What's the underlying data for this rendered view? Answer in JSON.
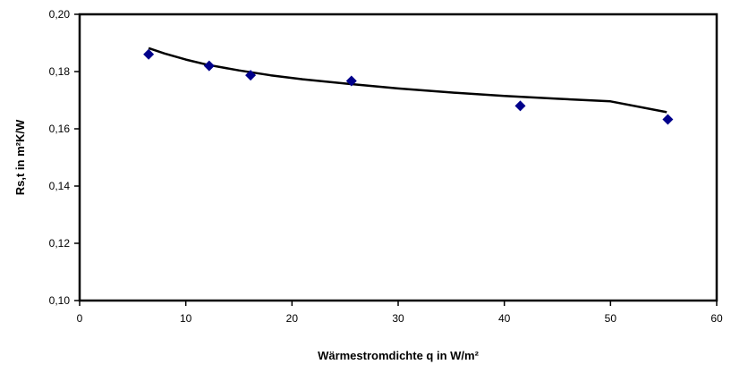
{
  "chart_data": {
    "type": "scatter",
    "xlabel": "Wärmestromdichte q in W/m²",
    "ylabel": "Rs,t in m²K/W",
    "xlim": [
      0,
      60
    ],
    "ylim": [
      0.1,
      0.2
    ],
    "x_ticks": [
      0,
      10,
      20,
      30,
      40,
      50,
      60
    ],
    "x_tick_labels": [
      "0",
      "10",
      "20",
      "30",
      "40",
      "50",
      "60"
    ],
    "y_ticks": [
      0.1,
      0.12,
      0.14,
      0.16,
      0.18,
      0.2
    ],
    "y_tick_labels": [
      "0,10",
      "0,12",
      "0,14",
      "0,16",
      "0,18",
      "0,20"
    ],
    "grid": false,
    "legend": "none",
    "series": [
      {
        "x": [
          6.5,
          12.2,
          16.1,
          25.6,
          41.5,
          55.4
        ],
        "y": [
          0.186,
          0.182,
          0.1787,
          0.1767,
          0.168,
          0.1633
        ]
      }
    ],
    "trendline": {
      "type": "power",
      "x": [
        6.5,
        8,
        10,
        12,
        15,
        18,
        21,
        25,
        30,
        35,
        40,
        45,
        50,
        55.3
      ],
      "y": [
        0.1882,
        0.1863,
        0.1842,
        0.1824,
        0.1804,
        0.1787,
        0.1773,
        0.1758,
        0.1741,
        0.1727,
        0.1715,
        0.1705,
        0.1696,
        0.1658
      ]
    },
    "colors": {
      "marker": "#00008b",
      "trendline": "#000000",
      "axes": "#000000"
    }
  }
}
